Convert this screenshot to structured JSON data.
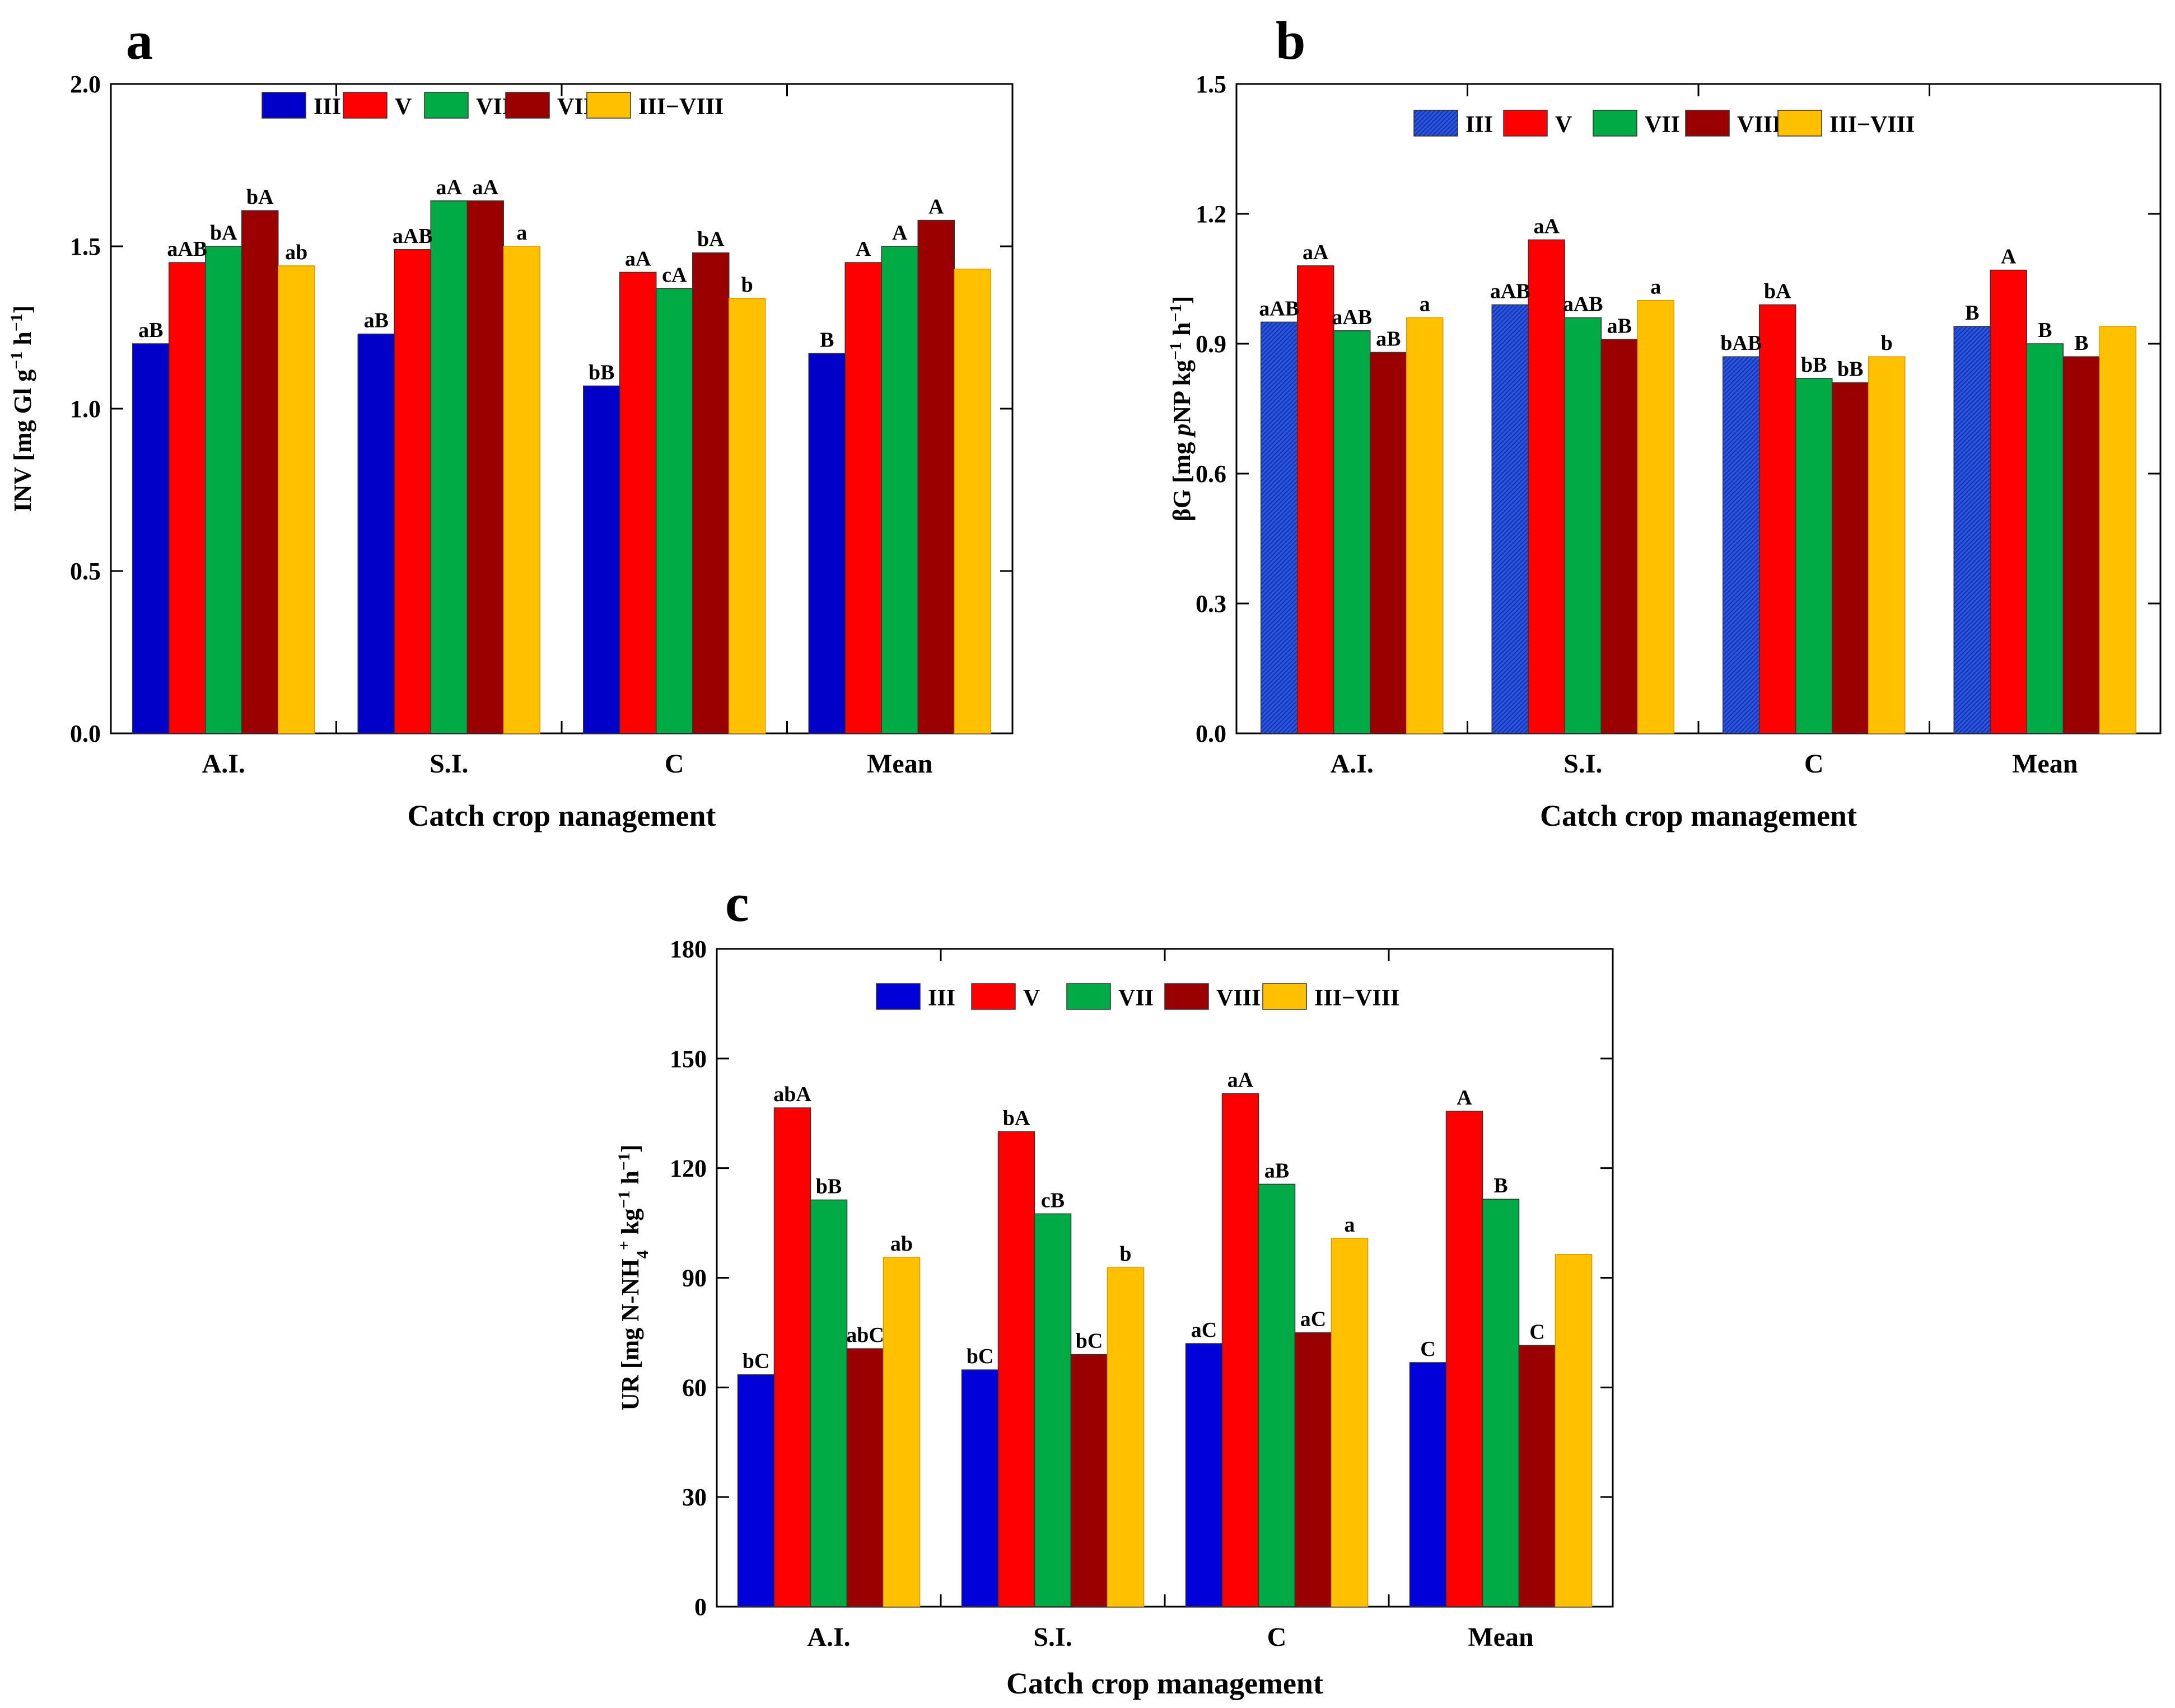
{
  "chart_data": [
    {
      "panel": "a",
      "type": "bar",
      "categories": [
        "A.I.",
        "S.I.",
        "C",
        "Mean"
      ],
      "series": [
        {
          "name": "III",
          "color": "#0000c8",
          "pattern": false,
          "values": [
            1.2,
            1.23,
            1.07,
            1.17
          ],
          "labels": [
            "aB",
            "aB",
            "bB",
            "B"
          ]
        },
        {
          "name": "V",
          "color": "#ff0000",
          "pattern": false,
          "values": [
            1.45,
            1.49,
            1.42,
            1.45
          ],
          "labels": [
            "aAB",
            "aAB",
            "aA",
            "A"
          ]
        },
        {
          "name": "VII",
          "color": "#00aa44",
          "pattern": false,
          "values": [
            1.5,
            1.64,
            1.37,
            1.5
          ],
          "labels": [
            "bA",
            "aA",
            "cA",
            "A"
          ]
        },
        {
          "name": "VIII",
          "color": "#9b0000",
          "pattern": false,
          "values": [
            1.61,
            1.64,
            1.48,
            1.58
          ],
          "labels": [
            "bA",
            "aA",
            "bA",
            "A"
          ]
        },
        {
          "name": "III−VIII",
          "color": "#ffc000",
          "pattern": false,
          "values": [
            1.44,
            1.5,
            1.34,
            1.43
          ],
          "labels": [
            "ab",
            "a",
            "b",
            ""
          ]
        }
      ],
      "ylim": [
        0,
        2.0
      ],
      "yticks": [
        "0.0",
        "0.5",
        "1.0",
        "1.5",
        "2.0"
      ],
      "xlabel": "Catch crop nanagement",
      "ylabel": "INV [mg Gl g⁻¹ h⁻¹]"
    },
    {
      "panel": "b",
      "type": "bar",
      "categories": [
        "A.I.",
        "S.I.",
        "C",
        "Mean"
      ],
      "series": [
        {
          "name": "III",
          "color": "#2a55e0",
          "pattern": true,
          "values": [
            0.95,
            0.99,
            0.87,
            0.94
          ],
          "labels": [
            "aAB",
            "aAB",
            "bAB",
            "B"
          ]
        },
        {
          "name": "V",
          "color": "#ff0000",
          "pattern": false,
          "values": [
            1.08,
            1.14,
            0.99,
            1.07
          ],
          "labels": [
            "aA",
            "aA",
            "bA",
            "A"
          ]
        },
        {
          "name": "VII",
          "color": "#00aa44",
          "pattern": false,
          "values": [
            0.93,
            0.96,
            0.82,
            0.9
          ],
          "labels": [
            "aAB",
            "aAB",
            "bB",
            "B"
          ]
        },
        {
          "name": "VIII",
          "color": "#9b0000",
          "pattern": false,
          "values": [
            0.88,
            0.91,
            0.81,
            0.87
          ],
          "labels": [
            "aB",
            "aB",
            "bB",
            "B"
          ]
        },
        {
          "name": "III−VIII",
          "color": "#ffc000",
          "pattern": false,
          "values": [
            0.96,
            1.0,
            0.87,
            0.94
          ],
          "labels": [
            "a",
            "a",
            "b",
            ""
          ]
        }
      ],
      "ylim": [
        0,
        1.5
      ],
      "yticks": [
        "0.0",
        "0.3",
        "0.6",
        "0.9",
        "1.2",
        "1.5"
      ],
      "xlabel": "Catch crop management",
      "ylabel": "βG [mg pNP kg⁻¹ h⁻¹]"
    },
    {
      "panel": "c",
      "type": "bar",
      "categories": [
        "A.I.",
        "S.I.",
        "C",
        "Mean"
      ],
      "series": [
        {
          "name": "III",
          "color": "#0000d8",
          "pattern": false,
          "values": [
            63.5,
            64.8,
            72.0,
            66.8
          ],
          "labels": [
            "bC",
            "bC",
            "aC",
            "C"
          ]
        },
        {
          "name": "V",
          "color": "#ff0000",
          "pattern": false,
          "values": [
            136.5,
            130.0,
            140.4,
            135.6
          ],
          "labels": [
            "abA",
            "bA",
            "aA",
            "A"
          ]
        },
        {
          "name": "VII",
          "color": "#00aa44",
          "pattern": false,
          "values": [
            111.3,
            107.5,
            115.6,
            111.5
          ],
          "labels": [
            "bB",
            "cB",
            "aB",
            "B"
          ]
        },
        {
          "name": "VIII",
          "color": "#9b0000",
          "pattern": false,
          "values": [
            70.6,
            69.0,
            75.0,
            71.5
          ],
          "labels": [
            "abC",
            "bC",
            "aC",
            "C"
          ]
        },
        {
          "name": "III−VIII",
          "color": "#ffc000",
          "pattern": false,
          "values": [
            95.6,
            92.8,
            100.8,
            96.4
          ],
          "labels": [
            "ab",
            "b",
            "a",
            ""
          ]
        }
      ],
      "ylim": [
        0,
        180
      ],
      "yticks": [
        "0",
        "30",
        "60",
        "90",
        "120",
        "150",
        "180"
      ],
      "xlabel": "Catch crop management",
      "ylabel": "UR [mg N-NH₄⁺ kg⁻¹ h⁻¹]"
    }
  ]
}
